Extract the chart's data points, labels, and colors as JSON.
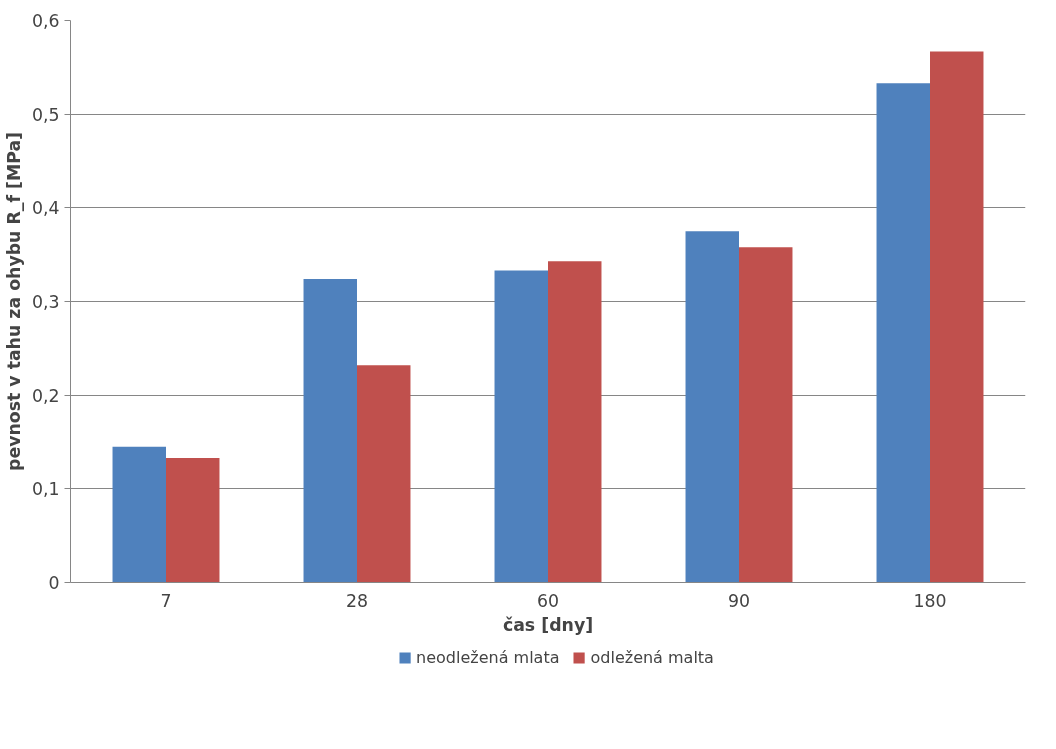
{
  "chart_data": {
    "type": "bar",
    "xlabel": "čas [dny]",
    "ylabel": "pevnost v tahu za ohybu R_f [MPa]",
    "categories": [
      "7",
      "28",
      "60",
      "90",
      "180"
    ],
    "series": [
      {
        "name": "neodležená mlata",
        "color": "#4f81bd",
        "values": [
          0.145,
          0.324,
          0.333,
          0.375,
          0.533
        ]
      },
      {
        "name": "odležená malta",
        "color": "#c0504d",
        "values": [
          0.133,
          0.232,
          0.343,
          0.358,
          0.567
        ]
      }
    ],
    "ylim": [
      0,
      0.6
    ],
    "yticks": [
      0,
      {
        "value": 0.1,
        "label": "0,1"
      },
      {
        "value": 0.2,
        "label": "0,2"
      },
      {
        "value": 0.3,
        "label": "0,3"
      },
      {
        "value": 0.4,
        "label": "0,4"
      },
      {
        "value": 0.5,
        "label": "0,5"
      },
      {
        "value": 0.6,
        "label": "0,6"
      }
    ],
    "grid": "y",
    "legend": "bottom"
  }
}
